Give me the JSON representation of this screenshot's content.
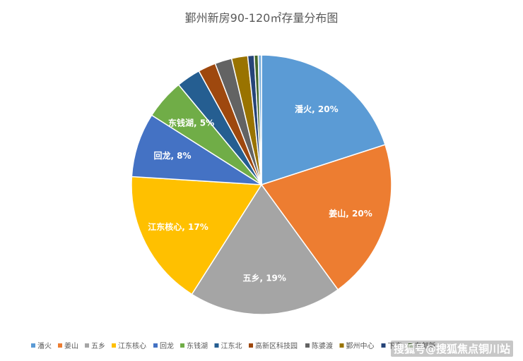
{
  "chart_data": {
    "type": "pie",
    "title": "鄞州新房90-120㎡存量分布图",
    "legend_position": "bottom",
    "slices": [
      {
        "label": "潘火",
        "value": 20,
        "color": "#5B9BD5",
        "data_label": "潘火, 20%"
      },
      {
        "label": "姜山",
        "value": 20,
        "color": "#ED7D31",
        "data_label": "姜山, 20%"
      },
      {
        "label": "五乡",
        "value": 19,
        "color": "#A5A5A5",
        "data_label": "五乡, 19%"
      },
      {
        "label": "江东核心",
        "value": 17,
        "color": "#FFC000",
        "data_label": "江东核心, 17%"
      },
      {
        "label": "回龙",
        "value": 8,
        "color": "#4472C4",
        "data_label": "回龙, 8%"
      },
      {
        "label": "东钱湖",
        "value": 5,
        "color": "#70AD47",
        "data_label": "东钱湖, 5%"
      },
      {
        "label": "江东北",
        "value": 3,
        "color": "#255E91",
        "data_label": ""
      },
      {
        "label": "高新区科技园",
        "value": 2.2,
        "color": "#9E480E",
        "data_label": ""
      },
      {
        "label": "陈婆渡",
        "value": 2.1,
        "color": "#636363",
        "data_label": ""
      },
      {
        "label": "鄞州中心",
        "value": 2,
        "color": "#997300",
        "data_label": ""
      },
      {
        "label": "下应",
        "value": 0.8,
        "color": "#264478",
        "data_label": ""
      },
      {
        "label": "东部新",
        "value": 0.5,
        "color": "#43682B",
        "data_label": ""
      },
      {
        "label": "",
        "value": 0.4,
        "color": "#7CAFDD",
        "data_label": ""
      }
    ]
  },
  "watermark": "搜狐号@搜狐焦点铜川站"
}
